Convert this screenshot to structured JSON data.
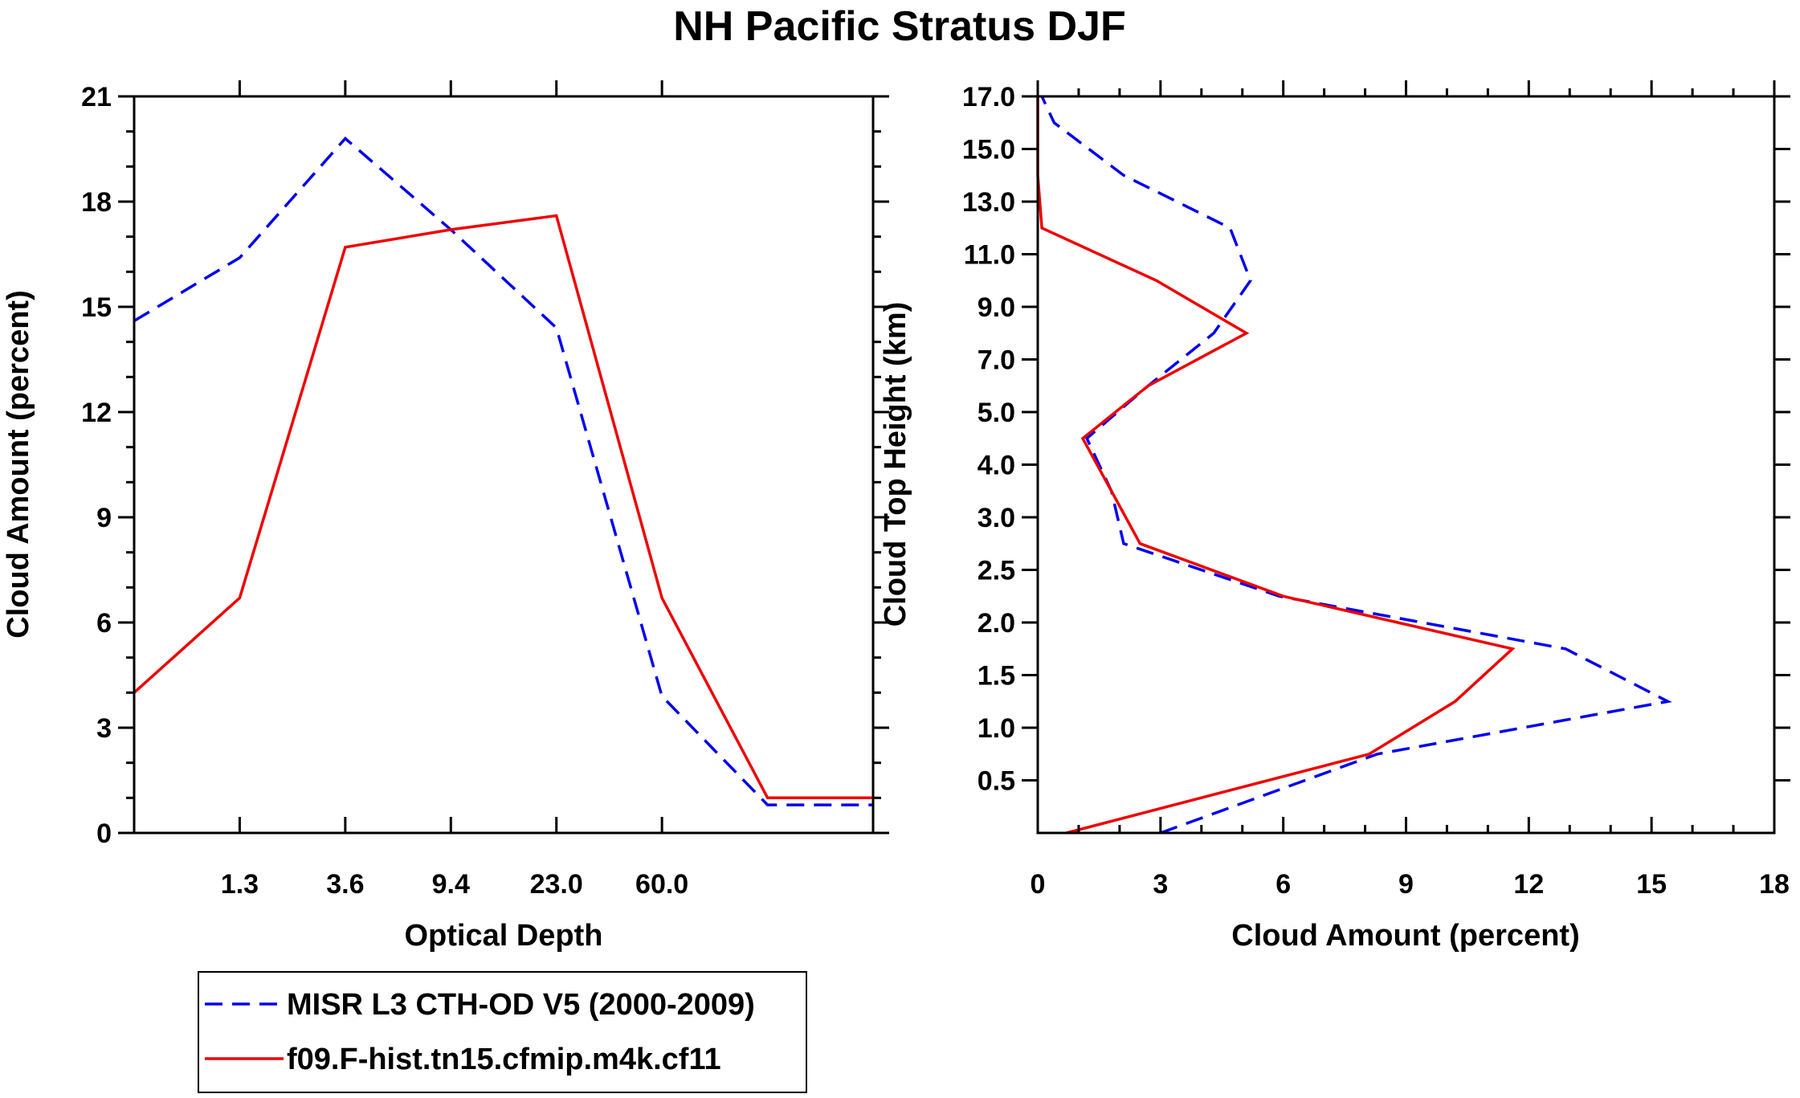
{
  "title": "NH Pacific Stratus DJF",
  "colors": {
    "misr": "#0000ee",
    "model": "#ee0000",
    "axis": "#000000"
  },
  "legend": {
    "entries": [
      {
        "label": "MISR L3 CTH-OD V5 (2000-2009)",
        "style": "dashed",
        "color": "#0000ee"
      },
      {
        "label": "f09.F-hist.tn15.cfmip.m4k.cf11",
        "style": "solid",
        "color": "#ee0000"
      }
    ]
  },
  "chart_data": [
    {
      "type": "line",
      "id": "optical-depth",
      "xlabel": "Optical Depth",
      "ylabel": "Cloud Amount (percent)",
      "x_index_range": [
        0,
        7
      ],
      "x_tick_labels": [
        "1.3",
        "3.6",
        "9.4",
        "23.0",
        "60.0"
      ],
      "ylim": [
        0,
        21
      ],
      "y_ticks": [
        "0",
        "3",
        "6",
        "9",
        "12",
        "15",
        "18",
        "21"
      ],
      "grid": false,
      "series": [
        {
          "name": "MISR L3 CTH-OD V5 (2000-2009)",
          "style": "dashed",
          "x": [
            0,
            1,
            2,
            3,
            4,
            5,
            6,
            7
          ],
          "values": [
            14.6,
            16.4,
            19.8,
            17.2,
            14.4,
            3.9,
            0.8,
            0.8
          ]
        },
        {
          "name": "f09.F-hist.tn15.cfmip.m4k.cf11",
          "style": "solid",
          "x": [
            0,
            1,
            2,
            3,
            4,
            5,
            6,
            7
          ],
          "values": [
            4.0,
            6.7,
            16.7,
            17.2,
            17.6,
            6.7,
            1.0,
            1.0
          ]
        }
      ]
    },
    {
      "type": "line",
      "id": "cloud-top-height",
      "xlabel": "Cloud Amount (percent)",
      "ylabel": "Cloud Top Height (km)",
      "xlim": [
        0,
        18
      ],
      "x_ticks": [
        "0",
        "3",
        "6",
        "9",
        "12",
        "15",
        "18"
      ],
      "y_index_range": [
        0,
        14
      ],
      "y_tick_labels": [
        "0.5",
        "1.0",
        "1.5",
        "2.0",
        "2.5",
        "3.0",
        "4.0",
        "5.0",
        "7.0",
        "9.0",
        "11.0",
        "13.0",
        "15.0",
        "17.0"
      ],
      "grid": false,
      "series": [
        {
          "name": "MISR L3 CTH-OD V5 (2000-2009)",
          "style": "dashed",
          "height_index": [
            0,
            1.5,
            2.5,
            3.5,
            4.5,
            5.5,
            6.5,
            7.5,
            8.5,
            9.5,
            10.5,
            11.5,
            12.5,
            13.5,
            14
          ],
          "values": [
            3.0,
            8.3,
            15.4,
            12.9,
            5.9,
            2.1,
            1.8,
            1.2,
            2.7,
            4.3,
            5.2,
            4.7,
            2.1,
            0.4,
            0.1
          ]
        },
        {
          "name": "f09.F-hist.tn15.cfmip.m4k.cf11",
          "style": "solid",
          "height_index": [
            0,
            1.5,
            2.5,
            3.5,
            4.5,
            5.5,
            6.5,
            7.5,
            8.5,
            9.5,
            10.5,
            11.5,
            12.5,
            14
          ],
          "values": [
            0.7,
            8.1,
            10.2,
            11.6,
            6.0,
            2.5,
            1.8,
            1.1,
            2.7,
            5.1,
            2.9,
            0.1,
            0.0,
            0.0
          ]
        }
      ]
    }
  ]
}
